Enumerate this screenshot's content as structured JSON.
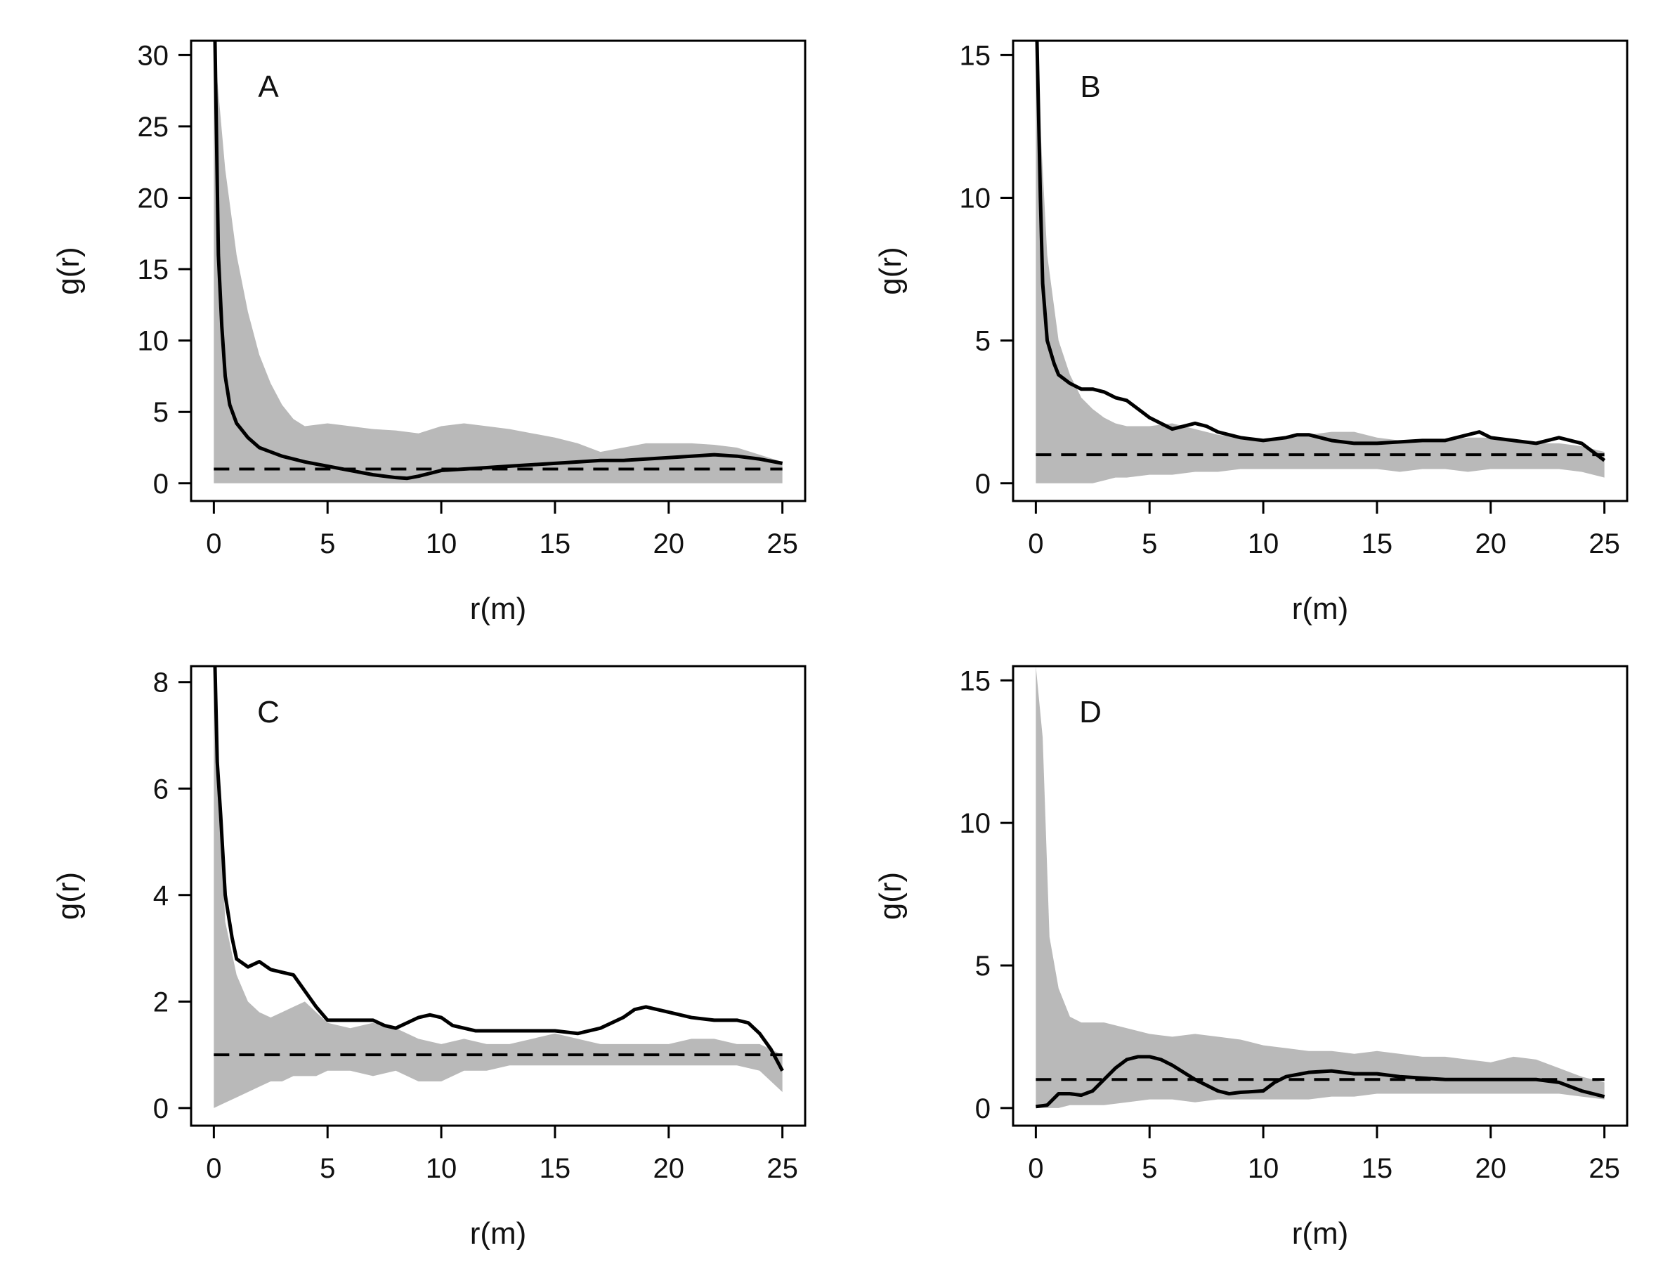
{
  "chart_data": [
    {
      "type": "line",
      "panel_label": "A",
      "xlabel": "r(m)",
      "ylabel": "g(r)",
      "xlim": [
        0,
        25
      ],
      "ylim": [
        0,
        31
      ],
      "xticks": [
        0,
        5,
        10,
        15,
        20,
        25
      ],
      "yticks": [
        0,
        5,
        10,
        15,
        20,
        25,
        30
      ],
      "observed": {
        "x": [
          0.05,
          0.2,
          0.35,
          0.5,
          0.7,
          1,
          1.5,
          2,
          3,
          4,
          5,
          6,
          7,
          8,
          8.5,
          9,
          10,
          11,
          12,
          13,
          14,
          15,
          16,
          17,
          18,
          19,
          20,
          21,
          22,
          23,
          24,
          25
        ],
        "y": [
          31,
          16,
          11,
          7.5,
          5.5,
          4.2,
          3.2,
          2.5,
          1.9,
          1.5,
          1.2,
          0.9,
          0.6,
          0.4,
          0.35,
          0.5,
          0.9,
          1.0,
          1.1,
          1.2,
          1.3,
          1.4,
          1.5,
          1.6,
          1.6,
          1.7,
          1.8,
          1.9,
          2.0,
          1.9,
          1.7,
          1.4
        ]
      },
      "envelope": {
        "x": [
          0,
          0.5,
          1,
          1.5,
          2,
          2.5,
          3,
          3.5,
          4,
          5,
          6,
          7,
          8,
          9,
          10,
          11,
          12,
          13,
          14,
          15,
          16,
          17,
          18,
          19,
          20,
          21,
          22,
          23,
          24,
          25
        ],
        "upper": [
          31,
          22,
          16,
          12,
          9,
          7,
          5.5,
          4.5,
          4.0,
          4.2,
          4.0,
          3.8,
          3.7,
          3.5,
          4.0,
          4.2,
          4.0,
          3.8,
          3.5,
          3.2,
          2.8,
          2.2,
          2.5,
          2.8,
          2.8,
          2.8,
          2.7,
          2.5,
          2.0,
          1.5
        ],
        "lower": [
          0,
          0,
          0,
          0,
          0,
          0,
          0,
          0,
          0,
          0,
          0,
          0,
          0,
          0,
          0,
          0,
          0,
          0,
          0,
          0,
          0,
          0,
          0,
          0,
          0,
          0,
          0,
          0,
          0,
          0
        ]
      },
      "reference": 1
    },
    {
      "type": "line",
      "panel_label": "B",
      "xlabel": "r(m)",
      "ylabel": "g(r)",
      "xlim": [
        0,
        25
      ],
      "ylim": [
        0,
        15.5
      ],
      "xticks": [
        0,
        5,
        10,
        15,
        20,
        25
      ],
      "yticks": [
        0,
        5,
        10,
        15
      ],
      "observed": {
        "x": [
          0.05,
          0.2,
          0.3,
          0.5,
          0.8,
          1,
          1.5,
          2,
          2.5,
          3,
          3.5,
          4,
          4.5,
          5,
          5.5,
          6,
          6.5,
          7,
          7.5,
          8,
          9,
          10,
          11,
          11.5,
          12,
          13,
          14,
          15,
          16,
          17,
          18,
          19,
          19.5,
          20,
          21,
          22,
          23,
          24,
          25
        ],
        "y": [
          15.5,
          10,
          7,
          5,
          4.2,
          3.8,
          3.5,
          3.3,
          3.3,
          3.2,
          3.0,
          2.9,
          2.6,
          2.3,
          2.1,
          1.9,
          2.0,
          2.1,
          2.0,
          1.8,
          1.6,
          1.5,
          1.6,
          1.7,
          1.7,
          1.5,
          1.4,
          1.4,
          1.45,
          1.5,
          1.5,
          1.7,
          1.8,
          1.6,
          1.5,
          1.4,
          1.6,
          1.4,
          0.8
        ]
      },
      "envelope": {
        "x": [
          0,
          0.5,
          1,
          1.5,
          2,
          2.5,
          3,
          3.5,
          4,
          5,
          6,
          7,
          8,
          9,
          10,
          11,
          12,
          13,
          14,
          15,
          16,
          17,
          18,
          19,
          20,
          21,
          22,
          23,
          24,
          25
        ],
        "upper": [
          15.5,
          8,
          5,
          3.8,
          3.0,
          2.6,
          2.3,
          2.1,
          2.0,
          2.0,
          2.1,
          1.9,
          1.7,
          1.6,
          1.5,
          1.6,
          1.7,
          1.8,
          1.8,
          1.6,
          1.5,
          1.5,
          1.5,
          1.6,
          1.6,
          1.5,
          1.4,
          1.4,
          1.3,
          1.1
        ],
        "lower": [
          0,
          0,
          0,
          0,
          0,
          0,
          0.1,
          0.2,
          0.2,
          0.3,
          0.3,
          0.4,
          0.4,
          0.5,
          0.5,
          0.5,
          0.5,
          0.5,
          0.5,
          0.5,
          0.4,
          0.5,
          0.5,
          0.4,
          0.5,
          0.5,
          0.5,
          0.5,
          0.4,
          0.2
        ]
      },
      "reference": 1
    },
    {
      "type": "line",
      "panel_label": "C",
      "xlabel": "r(m)",
      "ylabel": "g(r)",
      "xlim": [
        0,
        25
      ],
      "ylim": [
        0,
        8.3
      ],
      "xticks": [
        0,
        5,
        10,
        15,
        20,
        25
      ],
      "yticks": [
        0,
        2,
        4,
        6,
        8
      ],
      "observed": {
        "x": [
          0.05,
          0.15,
          0.3,
          0.5,
          0.8,
          1,
          1.5,
          2,
          2.5,
          3,
          3.5,
          4,
          4.5,
          5,
          6,
          7,
          7.5,
          8,
          8.5,
          9,
          9.5,
          10,
          10.5,
          11,
          11.5,
          12,
          13,
          14,
          15,
          16,
          17,
          18,
          18.5,
          19,
          19.5,
          20,
          21,
          22,
          23,
          23.5,
          24,
          24.5,
          25
        ],
        "y": [
          8.3,
          6.5,
          5.5,
          4.0,
          3.2,
          2.8,
          2.65,
          2.75,
          2.6,
          2.55,
          2.5,
          2.2,
          1.9,
          1.65,
          1.65,
          1.65,
          1.55,
          1.5,
          1.6,
          1.7,
          1.75,
          1.7,
          1.55,
          1.5,
          1.45,
          1.45,
          1.45,
          1.45,
          1.45,
          1.4,
          1.5,
          1.7,
          1.85,
          1.9,
          1.85,
          1.8,
          1.7,
          1.65,
          1.65,
          1.6,
          1.4,
          1.1,
          0.7
        ]
      },
      "envelope": {
        "x": [
          0,
          0.5,
          1,
          1.5,
          2,
          2.5,
          3,
          3.5,
          4,
          4.5,
          5,
          6,
          7,
          8,
          9,
          10,
          11,
          12,
          13,
          14,
          15,
          16,
          17,
          18,
          19,
          20,
          21,
          22,
          23,
          24,
          25
        ],
        "upper": [
          8.3,
          3.5,
          2.5,
          2.0,
          1.8,
          1.7,
          1.8,
          1.9,
          2.0,
          1.8,
          1.6,
          1.5,
          1.6,
          1.5,
          1.3,
          1.2,
          1.3,
          1.2,
          1.2,
          1.3,
          1.4,
          1.3,
          1.2,
          1.2,
          1.2,
          1.2,
          1.3,
          1.3,
          1.2,
          1.2,
          1.0
        ],
        "lower": [
          0,
          0.1,
          0.2,
          0.3,
          0.4,
          0.5,
          0.5,
          0.6,
          0.6,
          0.6,
          0.7,
          0.7,
          0.6,
          0.7,
          0.5,
          0.5,
          0.7,
          0.7,
          0.8,
          0.8,
          0.8,
          0.8,
          0.8,
          0.8,
          0.8,
          0.8,
          0.8,
          0.8,
          0.8,
          0.7,
          0.3
        ]
      },
      "reference": 1
    },
    {
      "type": "line",
      "panel_label": "D",
      "xlabel": "r(m)",
      "ylabel": "g(r)",
      "xlim": [
        0,
        25
      ],
      "ylim": [
        0,
        15.5
      ],
      "xticks": [
        0,
        5,
        10,
        15,
        20,
        25
      ],
      "yticks": [
        0,
        5,
        10,
        15
      ],
      "observed": {
        "x": [
          0,
          0.5,
          1,
          1.5,
          2,
          2.5,
          3,
          3.5,
          4,
          4.5,
          5,
          5.5,
          6,
          7,
          8,
          8.5,
          9,
          10,
          10.5,
          11,
          12,
          13,
          14,
          15,
          16,
          17,
          18,
          19,
          20,
          21,
          22,
          23,
          24,
          25
        ],
        "y": [
          0.05,
          0.1,
          0.5,
          0.5,
          0.45,
          0.6,
          1.0,
          1.4,
          1.7,
          1.8,
          1.8,
          1.7,
          1.5,
          1.0,
          0.6,
          0.5,
          0.55,
          0.6,
          0.9,
          1.1,
          1.25,
          1.3,
          1.2,
          1.2,
          1.1,
          1.05,
          1.0,
          1.0,
          1.0,
          1.0,
          1.0,
          0.9,
          0.6,
          0.4
        ]
      },
      "envelope": {
        "x": [
          0,
          0.3,
          0.6,
          1,
          1.5,
          2,
          3,
          4,
          5,
          6,
          7,
          8,
          9,
          10,
          11,
          12,
          13,
          14,
          15,
          16,
          17,
          18,
          19,
          20,
          21,
          22,
          23,
          24,
          25
        ],
        "upper": [
          15.5,
          13,
          6,
          4.2,
          3.2,
          3.0,
          3.0,
          2.8,
          2.6,
          2.5,
          2.6,
          2.5,
          2.4,
          2.2,
          2.1,
          2.0,
          2.0,
          1.9,
          2.0,
          1.9,
          1.8,
          1.8,
          1.7,
          1.6,
          1.8,
          1.7,
          1.4,
          1.1,
          0.9
        ],
        "lower": [
          0,
          0,
          0,
          0,
          0.1,
          0.1,
          0.1,
          0.2,
          0.3,
          0.3,
          0.2,
          0.3,
          0.3,
          0.3,
          0.3,
          0.3,
          0.4,
          0.4,
          0.5,
          0.5,
          0.5,
          0.5,
          0.5,
          0.5,
          0.5,
          0.5,
          0.5,
          0.4,
          0.3
        ]
      },
      "reference": 1
    }
  ],
  "colors": {
    "observed_line": "#000000",
    "envelope_fill": "#b9b9b9",
    "reference_line": "#000000",
    "axes": "#000000"
  }
}
